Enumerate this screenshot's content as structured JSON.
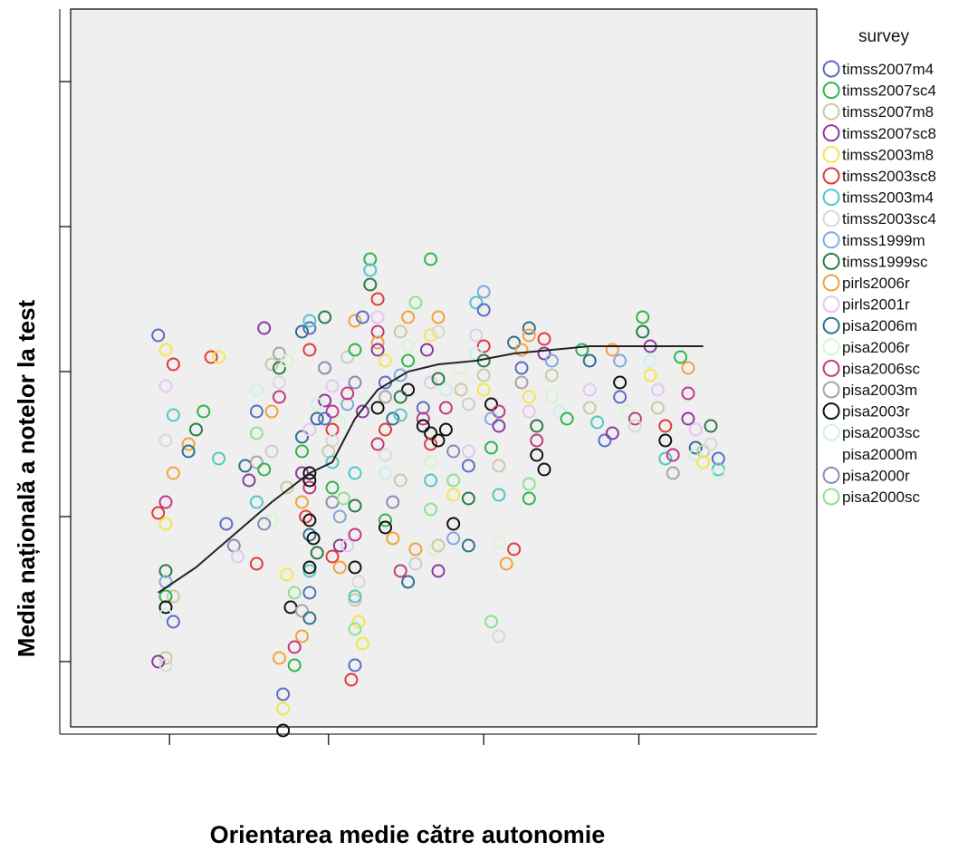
{
  "chart_data": {
    "type": "scatter",
    "title": "",
    "xlabel": "Orientarea medie către autonomie",
    "ylabel": "Media națională a notelor la test",
    "xlim": [
      0,
      10
    ],
    "ylim": [
      0,
      10
    ],
    "x_tick_values": [
      1.45,
      3.55,
      5.6,
      7.65
    ],
    "y_tick_values": [
      1.0,
      3.0,
      5.0,
      7.0,
      9.0
    ],
    "x_tick_labels": [
      "",
      "",
      "",
      ""
    ],
    "y_tick_labels": [
      "",
      "",
      "",
      "",
      ""
    ],
    "grid": false,
    "plot_background": "#efefef",
    "legend": {
      "title": "survey",
      "position": "right",
      "entries": [
        {
          "name": "timss2007m4",
          "color": "#5a6dc6"
        },
        {
          "name": "timss2007sc4",
          "color": "#2fb54a"
        },
        {
          "name": "timss2007m8",
          "color": "#ccc9a3"
        },
        {
          "name": "timss2007sc8",
          "color": "#8a3a9e"
        },
        {
          "name": "timss2003m8",
          "color": "#f5e64a"
        },
        {
          "name": "timss2003sc8",
          "color": "#e23a3a"
        },
        {
          "name": "timss2003m4",
          "color": "#4fc7c7"
        },
        {
          "name": "timss2003sc4",
          "color": "#d8d8d8"
        },
        {
          "name": "timss1999m",
          "color": "#7fa9e0"
        },
        {
          "name": "timss1999sc",
          "color": "#2a7a46"
        },
        {
          "name": "pirls2006r",
          "color": "#f3a23a"
        },
        {
          "name": "pirls2001r",
          "color": "#e3c6f2"
        },
        {
          "name": "pisa2006m",
          "color": "#2e6f8f"
        },
        {
          "name": "pisa2006r",
          "color": "#d4f5cf"
        },
        {
          "name": "pisa2006sc",
          "color": "#c23a80"
        },
        {
          "name": "pisa2003m",
          "color": "#a6a6a6"
        },
        {
          "name": "pisa2003r",
          "color": "#111111"
        },
        {
          "name": "pisa2003sc",
          "color": "#c9f0ef"
        },
        {
          "name": "pisa2000m",
          "color": ""
        },
        {
          "name": "pisa2000r",
          "color": "#8a8ab5"
        },
        {
          "name": "pisa2000sc",
          "color": "#8de28d"
        }
      ]
    },
    "points": [
      [
        1.3,
        5.5,
        0
      ],
      [
        1.4,
        5.3,
        4
      ],
      [
        1.5,
        5.1,
        5
      ],
      [
        1.4,
        4.8,
        11
      ],
      [
        1.5,
        4.4,
        6
      ],
      [
        1.4,
        4.05,
        7
      ],
      [
        1.5,
        3.6,
        10
      ],
      [
        1.4,
        3.2,
        14
      ],
      [
        1.3,
        3.05,
        5
      ],
      [
        1.4,
        2.9,
        4
      ],
      [
        1.5,
        1.9,
        2
      ],
      [
        1.4,
        1.9,
        1
      ],
      [
        1.4,
        2.25,
        9
      ],
      [
        1.4,
        1.75,
        16
      ],
      [
        1.4,
        1.65,
        17
      ],
      [
        1.5,
        1.55,
        0
      ],
      [
        1.4,
        1.05,
        2
      ],
      [
        1.3,
        1.0,
        3
      ],
      [
        1.4,
        0.95,
        7
      ],
      [
        1.4,
        2.1,
        8
      ],
      [
        1.7,
        4.0,
        10
      ],
      [
        1.7,
        3.9,
        12
      ],
      [
        1.8,
        4.2,
        9
      ],
      [
        1.9,
        4.45,
        1
      ],
      [
        2.0,
        5.2,
        5
      ],
      [
        2.1,
        5.2,
        4
      ],
      [
        2.1,
        3.8,
        6
      ],
      [
        2.2,
        2.9,
        0
      ],
      [
        2.3,
        2.6,
        19
      ],
      [
        2.35,
        2.45,
        11
      ],
      [
        2.45,
        3.7,
        12
      ],
      [
        2.5,
        3.5,
        3
      ],
      [
        2.6,
        3.75,
        15
      ],
      [
        2.6,
        4.75,
        17
      ],
      [
        2.6,
        4.45,
        0
      ],
      [
        2.7,
        3.65,
        1
      ],
      [
        2.8,
        4.45,
        10
      ],
      [
        2.8,
        5.1,
        2
      ],
      [
        2.7,
        5.6,
        3
      ],
      [
        2.9,
        4.65,
        14
      ],
      [
        2.9,
        4.85,
        7
      ],
      [
        2.9,
        5.05,
        9
      ],
      [
        2.8,
        2.95,
        13
      ],
      [
        2.7,
        2.9,
        19
      ],
      [
        2.8,
        3.9,
        18
      ],
      [
        2.6,
        3.2,
        6
      ],
      [
        2.6,
        4.15,
        20
      ],
      [
        2.6,
        2.35,
        5
      ],
      [
        2.9,
        5.25,
        15
      ],
      [
        3.0,
        5.15,
        13
      ],
      [
        3.0,
        3.4,
        2
      ],
      [
        3.0,
        2.2,
        4
      ],
      [
        3.05,
        1.75,
        16
      ],
      [
        3.1,
        1.95,
        20
      ],
      [
        2.95,
        0.55,
        0
      ],
      [
        2.95,
        0.35,
        4
      ],
      [
        2.95,
        0.05,
        16
      ],
      [
        2.9,
        1.05,
        10
      ],
      [
        3.1,
        0.95,
        1
      ],
      [
        3.2,
        4.1,
        12
      ],
      [
        3.2,
        5.55,
        12
      ],
      [
        3.3,
        5.6,
        0
      ],
      [
        3.3,
        5.7,
        6
      ],
      [
        3.3,
        5.3,
        5
      ],
      [
        3.3,
        4.2,
        11
      ],
      [
        3.2,
        3.9,
        1
      ],
      [
        3.2,
        3.6,
        3
      ],
      [
        3.3,
        3.4,
        14
      ],
      [
        3.2,
        3.2,
        10
      ],
      [
        3.25,
        3.0,
        5
      ],
      [
        3.3,
        2.75,
        12
      ],
      [
        3.4,
        2.5,
        9
      ],
      [
        3.3,
        2.25,
        6
      ],
      [
        3.3,
        1.95,
        0
      ],
      [
        3.2,
        1.7,
        15
      ],
      [
        3.3,
        1.6,
        12
      ],
      [
        3.2,
        1.35,
        10
      ],
      [
        3.1,
        1.2,
        14
      ],
      [
        3.3,
        3.6,
        16
      ],
      [
        3.3,
        3.5,
        16
      ],
      [
        3.3,
        2.95,
        16
      ],
      [
        3.35,
        2.7,
        16
      ],
      [
        3.3,
        2.3,
        16
      ],
      [
        3.5,
        5.75,
        9
      ],
      [
        3.5,
        5.05,
        19
      ],
      [
        3.6,
        4.8,
        11
      ],
      [
        3.6,
        4.45,
        14
      ],
      [
        3.7,
        4.3,
        13
      ],
      [
        3.4,
        4.35,
        12
      ],
      [
        3.5,
        4.6,
        3
      ],
      [
        3.6,
        4.2,
        5
      ],
      [
        3.5,
        4.35,
        0
      ],
      [
        3.4,
        4.55,
        17
      ],
      [
        3.6,
        4.05,
        7
      ],
      [
        3.6,
        3.2,
        19
      ],
      [
        3.7,
        3.0,
        4
      ],
      [
        3.6,
        2.45,
        5
      ],
      [
        3.7,
        2.3,
        10
      ],
      [
        3.7,
        2.6,
        3
      ],
      [
        3.55,
        3.9,
        2
      ],
      [
        3.6,
        3.75,
        6
      ],
      [
        3.6,
        3.4,
        1
      ],
      [
        3.7,
        3.0,
        8
      ],
      [
        3.8,
        2.6,
        11
      ],
      [
        3.9,
        2.75,
        14
      ],
      [
        3.9,
        2.3,
        16
      ],
      [
        3.9,
        1.85,
        2
      ],
      [
        4.0,
        1.25,
        4
      ],
      [
        3.9,
        3.15,
        9
      ],
      [
        3.9,
        3.6,
        6
      ],
      [
        3.75,
        3.25,
        20
      ],
      [
        3.8,
        4.55,
        8
      ],
      [
        3.8,
        4.7,
        14
      ],
      [
        3.8,
        5.2,
        18
      ],
      [
        3.9,
        5.3,
        1
      ],
      [
        3.9,
        5.7,
        10
      ],
      [
        4.0,
        5.75,
        2
      ],
      [
        4.0,
        4.45,
        3
      ],
      [
        3.9,
        4.85,
        19
      ],
      [
        3.95,
        2.1,
        7
      ],
      [
        3.95,
        1.55,
        4
      ],
      [
        3.9,
        1.9,
        6
      ],
      [
        3.85,
        0.75,
        5
      ],
      [
        3.9,
        1.45,
        20
      ],
      [
        3.9,
        0.95,
        0
      ],
      [
        4.1,
        6.55,
        1
      ],
      [
        4.1,
        6.4,
        6
      ],
      [
        4.1,
        6.2,
        9
      ],
      [
        4.2,
        6.0,
        5
      ],
      [
        4.2,
        5.75,
        11
      ],
      [
        4.0,
        5.75,
        0
      ],
      [
        4.2,
        5.55,
        14
      ],
      [
        4.2,
        5.4,
        10
      ],
      [
        4.2,
        5.3,
        3
      ],
      [
        4.3,
        5.15,
        4
      ],
      [
        4.3,
        4.85,
        0
      ],
      [
        4.3,
        4.65,
        15
      ],
      [
        4.2,
        4.5,
        16
      ],
      [
        4.4,
        4.35,
        12
      ],
      [
        4.3,
        4.2,
        5
      ],
      [
        4.2,
        4.0,
        14
      ],
      [
        4.3,
        3.85,
        7
      ],
      [
        4.3,
        3.6,
        17
      ],
      [
        4.4,
        3.2,
        19
      ],
      [
        4.3,
        2.95,
        1
      ],
      [
        4.3,
        2.85,
        16
      ],
      [
        4.5,
        3.5,
        2
      ],
      [
        4.4,
        2.7,
        10
      ],
      [
        4.5,
        2.25,
        14
      ],
      [
        4.6,
        2.1,
        12
      ],
      [
        4.7,
        2.35,
        18
      ],
      [
        4.7,
        2.55,
        10
      ],
      [
        4.5,
        4.4,
        6
      ],
      [
        4.5,
        4.95,
        8
      ],
      [
        4.6,
        5.15,
        1
      ],
      [
        4.6,
        5.35,
        13
      ],
      [
        4.5,
        5.55,
        2
      ],
      [
        4.6,
        5.75,
        10
      ],
      [
        4.7,
        5.95,
        20
      ],
      [
        4.6,
        4.75,
        16
      ],
      [
        4.5,
        4.65,
        9
      ],
      [
        4.8,
        4.5,
        0
      ],
      [
        4.8,
        4.35,
        14
      ],
      [
        4.8,
        4.25,
        16
      ],
      [
        4.9,
        4.15,
        16
      ],
      [
        4.85,
        5.3,
        3
      ],
      [
        4.9,
        5.5,
        4
      ],
      [
        4.9,
        4.85,
        11
      ],
      [
        4.9,
        4.0,
        5
      ],
      [
        4.9,
        3.75,
        13
      ],
      [
        4.9,
        3.5,
        6
      ],
      [
        4.9,
        3.1,
        20
      ],
      [
        4.95,
        2.55,
        13
      ],
      [
        5.0,
        2.6,
        2
      ],
      [
        5.0,
        2.25,
        3
      ],
      [
        4.9,
        6.55,
        1
      ],
      [
        5.0,
        5.75,
        10
      ],
      [
        5.0,
        5.55,
        7
      ],
      [
        5.0,
        4.9,
        9
      ],
      [
        5.1,
        4.75,
        17
      ],
      [
        5.1,
        4.5,
        14
      ],
      [
        5.1,
        4.2,
        16
      ],
      [
        5.0,
        4.05,
        16
      ],
      [
        5.2,
        3.9,
        19
      ],
      [
        5.2,
        3.5,
        20
      ],
      [
        5.2,
        3.3,
        4
      ],
      [
        5.2,
        2.9,
        16
      ],
      [
        5.2,
        2.7,
        8
      ],
      [
        5.3,
        5.05,
        13
      ],
      [
        5.3,
        4.75,
        2
      ],
      [
        5.4,
        4.55,
        18
      ],
      [
        5.4,
        3.9,
        11
      ],
      [
        5.4,
        3.7,
        0
      ],
      [
        5.4,
        3.25,
        9
      ],
      [
        5.4,
        2.6,
        12
      ],
      [
        5.5,
        5.95,
        6
      ],
      [
        5.6,
        6.1,
        8
      ],
      [
        5.6,
        5.85,
        0
      ],
      [
        5.5,
        5.5,
        11
      ],
      [
        5.6,
        5.35,
        5
      ],
      [
        5.5,
        5.25,
        17
      ],
      [
        5.6,
        5.15,
        9
      ],
      [
        5.6,
        4.95,
        2
      ],
      [
        5.6,
        4.75,
        4
      ],
      [
        5.7,
        4.55,
        16
      ],
      [
        5.8,
        4.45,
        14
      ],
      [
        5.7,
        4.35,
        8
      ],
      [
        5.8,
        4.25,
        3
      ],
      [
        5.7,
        3.95,
        1
      ],
      [
        5.8,
        3.7,
        2
      ],
      [
        5.8,
        3.3,
        6
      ],
      [
        5.8,
        2.65,
        13
      ],
      [
        5.9,
        2.35,
        10
      ],
      [
        6.0,
        2.55,
        5
      ],
      [
        5.8,
        1.35,
        7
      ],
      [
        5.7,
        1.55,
        20
      ],
      [
        6.0,
        5.4,
        12
      ],
      [
        6.1,
        5.3,
        10
      ],
      [
        6.1,
        5.05,
        0
      ],
      [
        6.1,
        4.85,
        15
      ],
      [
        6.2,
        4.65,
        4
      ],
      [
        6.2,
        4.45,
        11
      ],
      [
        6.3,
        4.25,
        9
      ],
      [
        6.3,
        4.05,
        14
      ],
      [
        6.3,
        3.85,
        16
      ],
      [
        6.4,
        3.65,
        16
      ],
      [
        6.2,
        3.45,
        20
      ],
      [
        6.2,
        3.25,
        1
      ],
      [
        6.2,
        5.6,
        12
      ],
      [
        6.2,
        5.5,
        10
      ],
      [
        6.4,
        5.45,
        5
      ],
      [
        6.4,
        5.25,
        3
      ],
      [
        6.5,
        5.15,
        8
      ],
      [
        6.5,
        4.95,
        2
      ],
      [
        6.5,
        4.65,
        13
      ],
      [
        6.6,
        4.45,
        17
      ],
      [
        6.7,
        4.35,
        1
      ],
      [
        6.9,
        5.3,
        1
      ],
      [
        7.0,
        5.15,
        12
      ],
      [
        7.0,
        4.75,
        11
      ],
      [
        7.0,
        4.5,
        2
      ],
      [
        7.1,
        4.3,
        6
      ],
      [
        7.2,
        4.05,
        0
      ],
      [
        7.3,
        4.15,
        3
      ],
      [
        7.3,
        5.3,
        10
      ],
      [
        7.4,
        5.15,
        8
      ],
      [
        7.4,
        4.85,
        16
      ],
      [
        7.4,
        4.65,
        0
      ],
      [
        7.5,
        4.45,
        13
      ],
      [
        7.6,
        4.35,
        14
      ],
      [
        7.6,
        4.25,
        7
      ],
      [
        7.7,
        5.75,
        1
      ],
      [
        7.7,
        5.55,
        9
      ],
      [
        7.8,
        5.35,
        3
      ],
      [
        7.8,
        5.15,
        17
      ],
      [
        7.8,
        4.95,
        4
      ],
      [
        7.9,
        4.75,
        11
      ],
      [
        7.9,
        4.5,
        2
      ],
      [
        8.0,
        4.25,
        5
      ],
      [
        8.0,
        4.05,
        16
      ],
      [
        8.0,
        3.8,
        6
      ],
      [
        8.1,
        3.85,
        14
      ],
      [
        8.1,
        3.6,
        15
      ],
      [
        8.2,
        5.2,
        1
      ],
      [
        8.3,
        5.05,
        10
      ],
      [
        8.3,
        4.7,
        14
      ],
      [
        8.3,
        4.35,
        3
      ],
      [
        8.4,
        4.2,
        11
      ],
      [
        8.4,
        3.95,
        12
      ],
      [
        8.4,
        3.85,
        17
      ],
      [
        8.5,
        3.9,
        2
      ],
      [
        8.5,
        3.75,
        4
      ],
      [
        8.6,
        4.25,
        9
      ],
      [
        8.6,
        4.0,
        7
      ],
      [
        8.7,
        3.8,
        0
      ],
      [
        8.7,
        3.65,
        6
      ],
      [
        8.7,
        3.6,
        13
      ]
    ],
    "loess_line": [
      [
        1.3,
        1.95
      ],
      [
        1.8,
        2.3
      ],
      [
        2.3,
        2.75
      ],
      [
        2.8,
        3.2
      ],
      [
        3.3,
        3.6
      ],
      [
        3.6,
        3.75
      ],
      [
        3.9,
        4.35
      ],
      [
        4.2,
        4.75
      ],
      [
        4.6,
        5.0
      ],
      [
        5.0,
        5.1
      ],
      [
        5.5,
        5.15
      ],
      [
        6.0,
        5.25
      ],
      [
        6.5,
        5.3
      ],
      [
        7.0,
        5.35
      ],
      [
        7.5,
        5.35
      ],
      [
        8.0,
        5.35
      ],
      [
        8.5,
        5.35
      ]
    ]
  }
}
